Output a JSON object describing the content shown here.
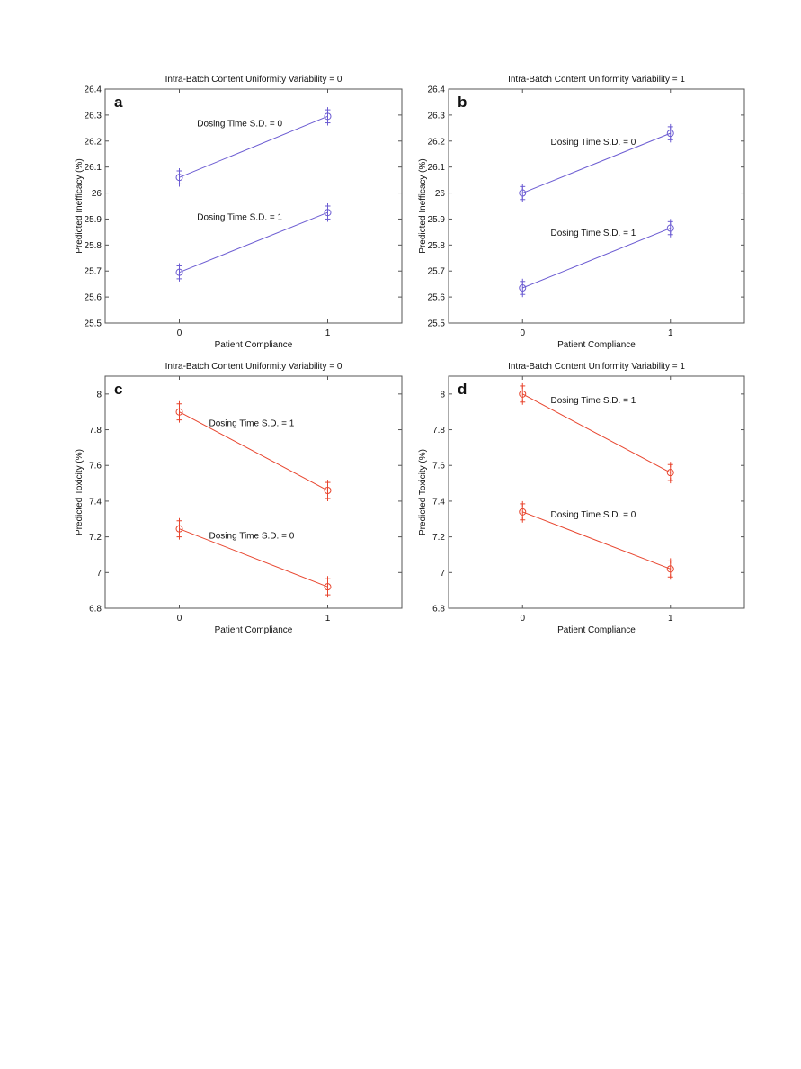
{
  "chart_data": [
    {
      "type": "line",
      "panel_label": "a",
      "title": "Intra-Batch Content Uniformity Variability = 0",
      "xlabel": "Patient Compliance",
      "ylabel": "Predicted Inefficacy (%)",
      "xlim": [
        -0.5,
        1.5
      ],
      "ylim": [
        25.5,
        26.4
      ],
      "xticks": [
        "0",
        "1"
      ],
      "yticks": [
        "25.5",
        "25.6",
        "25.7",
        "25.8",
        "25.9",
        "26",
        "26.1",
        "26.2",
        "26.3",
        "26.4"
      ],
      "color": "#6b5bd2",
      "x": [
        0,
        1
      ],
      "series": [
        {
          "name": "Dosing Time S.D. = 0",
          "values": [
            26.06,
            26.295
          ],
          "error": [
            0.025,
            0.025
          ],
          "label_at": [
            0.12,
            26.27
          ]
        },
        {
          "name": "Dosing Time S.D. = 1",
          "values": [
            25.695,
            25.925
          ],
          "error": [
            0.025,
            0.025
          ],
          "label_at": [
            0.12,
            25.91
          ]
        }
      ]
    },
    {
      "type": "line",
      "panel_label": "b",
      "title": "Intra-Batch Content Uniformity Variability = 1",
      "xlabel": "Patient Compliance",
      "ylabel": "Predicted Inefficacy (%)",
      "xlim": [
        -0.5,
        1.5
      ],
      "ylim": [
        25.5,
        26.4
      ],
      "xticks": [
        "0",
        "1"
      ],
      "yticks": [
        "25.5",
        "25.6",
        "25.7",
        "25.8",
        "25.9",
        "26",
        "26.1",
        "26.2",
        "26.3",
        "26.4"
      ],
      "color": "#6b5bd2",
      "x": [
        0,
        1
      ],
      "series": [
        {
          "name": "Dosing Time S.D. = 0",
          "values": [
            26.0,
            26.23
          ],
          "error": [
            0.025,
            0.025
          ],
          "label_at": [
            0.19,
            26.2
          ]
        },
        {
          "name": "Dosing Time S.D. = 1",
          "values": [
            25.635,
            25.865
          ],
          "error": [
            0.025,
            0.025
          ],
          "label_at": [
            0.19,
            25.85
          ]
        }
      ]
    },
    {
      "type": "line",
      "panel_label": "c",
      "title": "Intra-Batch Content Uniformity Variability = 0",
      "xlabel": "Patient Compliance",
      "ylabel": "Predicted Toxicity (%)",
      "xlim": [
        -0.5,
        1.5
      ],
      "ylim": [
        6.8,
        8.1
      ],
      "xticks": [
        "0",
        "1"
      ],
      "yticks": [
        "6.8",
        "7",
        "7.2",
        "7.4",
        "7.6",
        "7.8",
        "8"
      ],
      "color": "#e8452e",
      "x": [
        0,
        1
      ],
      "series": [
        {
          "name": "Dosing Time S.D. = 1",
          "values": [
            7.9,
            7.46
          ],
          "error": [
            0.045,
            0.045
          ],
          "label_at": [
            0.2,
            7.84
          ]
        },
        {
          "name": "Dosing Time S.D. = 0",
          "values": [
            7.245,
            6.92
          ],
          "error": [
            0.045,
            0.045
          ],
          "label_at": [
            0.2,
            7.21
          ]
        }
      ]
    },
    {
      "type": "line",
      "panel_label": "d",
      "title": "Intra-Batch Content Uniformity Variability = 1",
      "xlabel": "Patient Compliance",
      "ylabel": "Predicted Toxicity (%)",
      "xlim": [
        -0.5,
        1.5
      ],
      "ylim": [
        6.8,
        8.1
      ],
      "xticks": [
        "0",
        "1"
      ],
      "yticks": [
        "6.8",
        "7",
        "7.2",
        "7.4",
        "7.6",
        "7.8",
        "8"
      ],
      "color": "#e8452e",
      "x": [
        0,
        1
      ],
      "series": [
        {
          "name": "Dosing Time S.D. = 1",
          "values": [
            8.0,
            7.56
          ],
          "error": [
            0.045,
            0.045
          ],
          "label_at": [
            0.19,
            7.97
          ]
        },
        {
          "name": "Dosing Time S.D. = 0",
          "values": [
            7.34,
            7.02
          ],
          "error": [
            0.045,
            0.045
          ],
          "label_at": [
            0.19,
            7.33
          ]
        }
      ]
    }
  ]
}
